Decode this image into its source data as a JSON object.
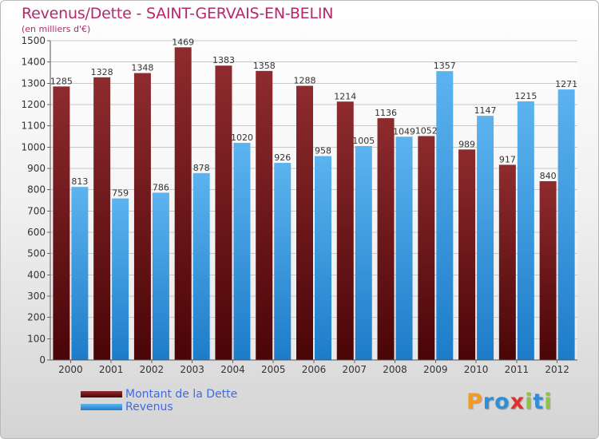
{
  "header": {
    "title": "Revenus/Dette - SAINT-GERVAIS-EN-BELIN",
    "subtitle": "(en milliers d'€)"
  },
  "chart_data": {
    "type": "bar",
    "categories": [
      "2000",
      "2001",
      "2002",
      "2003",
      "2004",
      "2005",
      "2006",
      "2007",
      "2008",
      "2009",
      "2010",
      "2011",
      "2012"
    ],
    "series": [
      {
        "name": "Montant de la Dette",
        "color": "#7a1a1d",
        "values": [
          1285,
          1328,
          1348,
          1469,
          1383,
          1358,
          1288,
          1214,
          1136,
          1052,
          989,
          917,
          840
        ]
      },
      {
        "name": "Revenus",
        "color": "#3f9ee6",
        "values": [
          813,
          759,
          786,
          878,
          1020,
          926,
          958,
          1005,
          1049,
          1357,
          1147,
          1215,
          1271
        ]
      }
    ],
    "yticks": [
      0,
      100,
      200,
      300,
      400,
      500,
      600,
      700,
      800,
      900,
      1000,
      1100,
      1200,
      1300,
      1400,
      1500
    ],
    "ylim": [
      0,
      1500
    ],
    "grid": true,
    "legend": "bottom-left"
  },
  "logo": {
    "letters": [
      {
        "char": "P",
        "color": "#f39a1f"
      },
      {
        "char": "r",
        "color": "#2f8ed8"
      },
      {
        "char": "o",
        "color": "#2f8ed8"
      },
      {
        "char": "x",
        "color": "#e0302d"
      },
      {
        "char": "i",
        "color": "#8cc43f"
      },
      {
        "char": "t",
        "color": "#2f8ed8"
      },
      {
        "char": "i",
        "color": "#8cc43f"
      }
    ]
  }
}
